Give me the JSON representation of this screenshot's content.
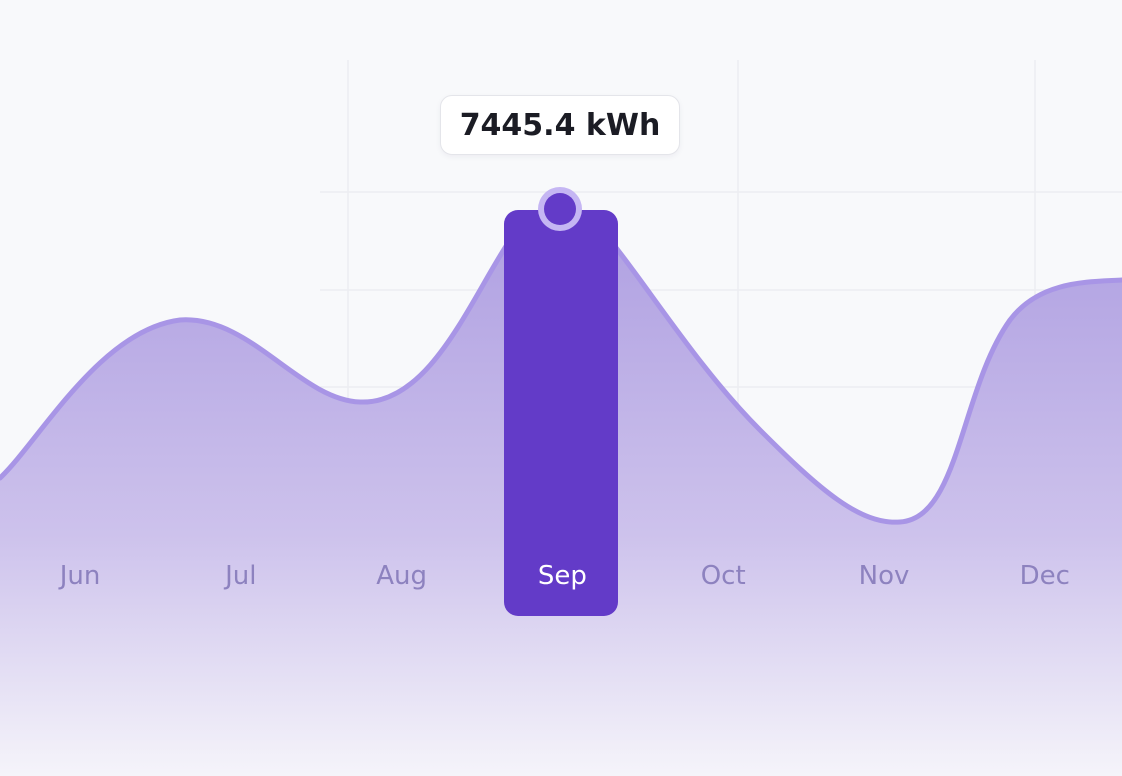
{
  "chart_data": {
    "type": "area",
    "categories": [
      "Jun",
      "Jul",
      "Aug",
      "Sep",
      "Oct",
      "Nov",
      "Dec"
    ],
    "highlight": {
      "category": "Sep",
      "label": "7445.4 kWh"
    }
  },
  "colors": {
    "area_top": "#b1a2e2",
    "area_bottom": "#f3f2f9",
    "area_stroke": "#a895e6",
    "highlight_bar": "#633bc8",
    "marker_ring": "#c5b6f3",
    "label": "#8d82bf",
    "grid": "#ecedf1"
  }
}
